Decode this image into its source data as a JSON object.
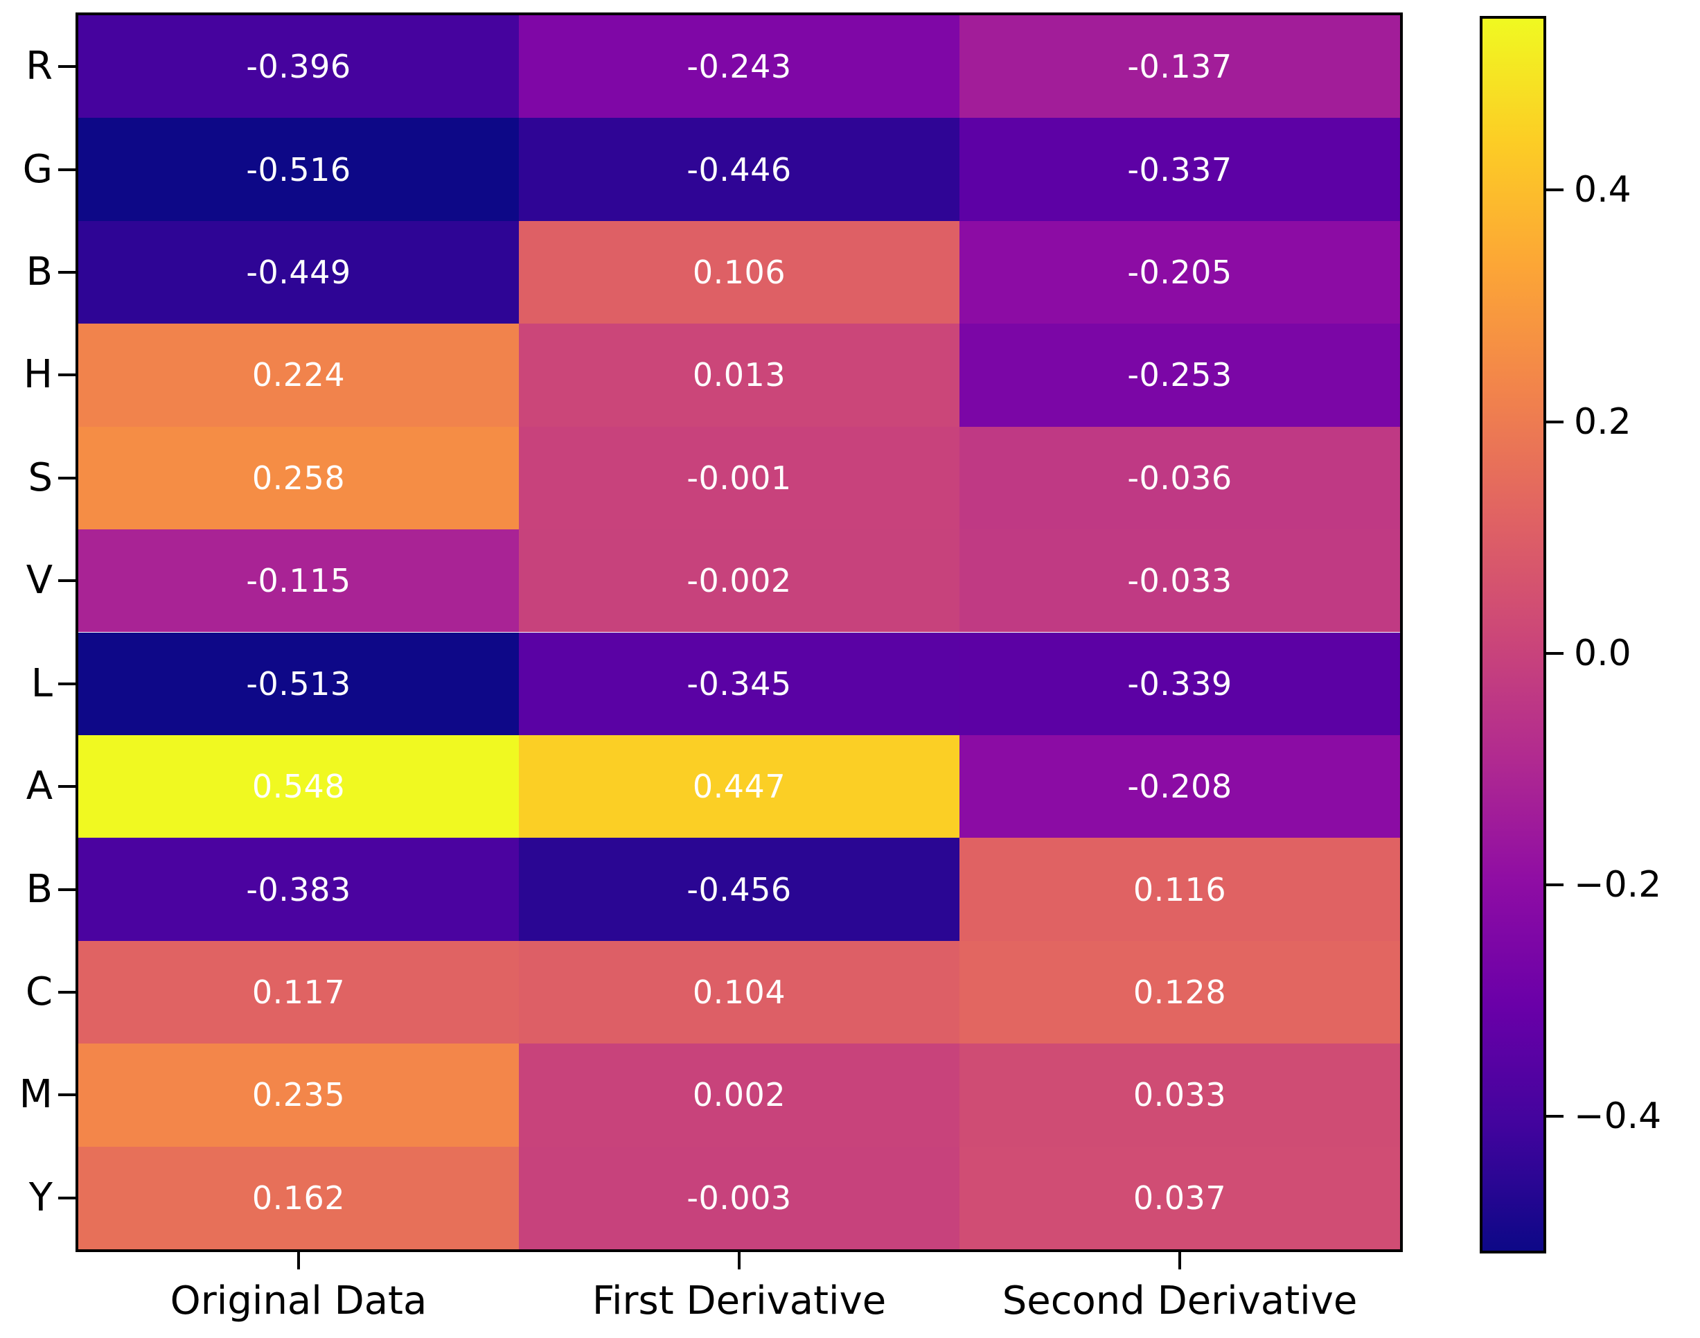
{
  "chart_data": {
    "type": "heatmap",
    "title": "",
    "rows": [
      "R",
      "G",
      "B",
      "H",
      "S",
      "V",
      "L",
      "A",
      "B",
      "C",
      "M",
      "Y"
    ],
    "columns": [
      "Original Data",
      "First Derivative",
      "Second Derivative"
    ],
    "values": [
      [
        -0.396,
        -0.243,
        -0.137
      ],
      [
        -0.516,
        -0.446,
        -0.337
      ],
      [
        -0.449,
        0.106,
        -0.205
      ],
      [
        0.224,
        0.013,
        -0.253
      ],
      [
        0.258,
        -0.001,
        -0.036
      ],
      [
        -0.115,
        -0.002,
        -0.033
      ],
      [
        -0.513,
        -0.345,
        -0.339
      ],
      [
        0.548,
        0.447,
        -0.208
      ],
      [
        -0.383,
        -0.456,
        0.116
      ],
      [
        0.117,
        0.104,
        0.128
      ],
      [
        0.235,
        0.002,
        0.033
      ],
      [
        0.162,
        -0.003,
        0.037
      ]
    ],
    "value_format_decimals": 3,
    "colormap": "plasma",
    "colormap_stops": [
      "#0d0887",
      "#41049d",
      "#6a00a8",
      "#8f0da4",
      "#b12a90",
      "#cc4778",
      "#e16462",
      "#f2844b",
      "#fca636",
      "#fccd25",
      "#f0f921"
    ],
    "vmin": -0.516,
    "vmax": 0.548,
    "grid": false,
    "legend_position": "colorbar-right",
    "colorbar_ticks": {
      "labels": [
        "0.4",
        "0.2",
        "0.0",
        "−0.2",
        "−0.4"
      ],
      "values": [
        0.4,
        0.2,
        0.0,
        -0.2,
        -0.4
      ]
    }
  },
  "colors": {
    "background": "#ffffff",
    "axis_text": "#000000",
    "spine": "#000000",
    "cell_text": "#ffffff"
  }
}
